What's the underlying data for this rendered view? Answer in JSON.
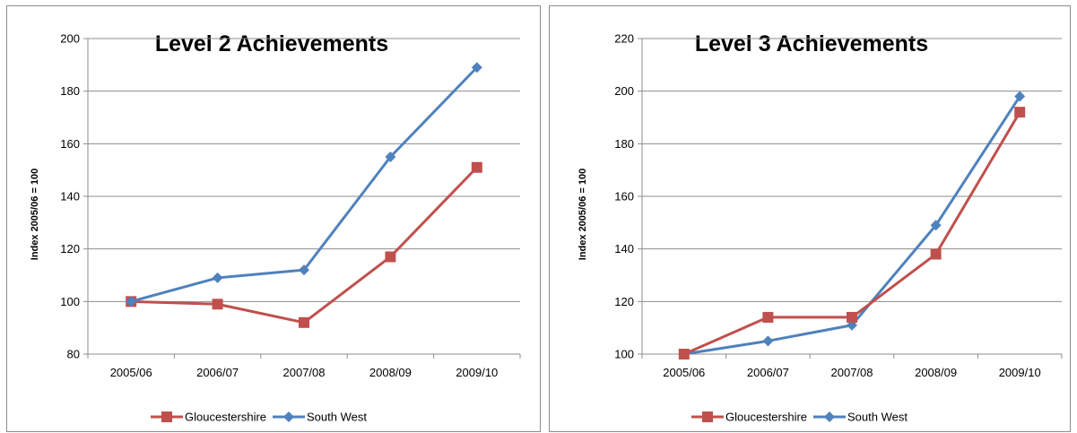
{
  "chart_data": [
    {
      "type": "line",
      "title": "Level 2 Achievements",
      "ylabel": "Index 2005/06 = 100",
      "xlabel": "",
      "categories": [
        "2005/06",
        "2006/07",
        "2007/08",
        "2008/09",
        "2009/10"
      ],
      "ylim": [
        80,
        200
      ],
      "yticks": [
        80,
        100,
        120,
        140,
        160,
        180,
        200
      ],
      "grid": true,
      "legend_position": "bottom",
      "series": [
        {
          "name": "Gloucestershire",
          "color": "#c0504d",
          "marker": "square",
          "values": [
            100,
            99,
            92,
            117,
            151
          ]
        },
        {
          "name": "South West",
          "color": "#4f81bd",
          "marker": "diamond",
          "values": [
            100,
            109,
            112,
            155,
            189
          ]
        }
      ]
    },
    {
      "type": "line",
      "title": "Level 3 Achievements",
      "ylabel": "Index 2005/06 = 100",
      "xlabel": "",
      "categories": [
        "2005/06",
        "2006/07",
        "2007/08",
        "2008/09",
        "2009/10"
      ],
      "ylim": [
        100,
        220
      ],
      "yticks": [
        100,
        120,
        140,
        160,
        180,
        200,
        220
      ],
      "grid": true,
      "legend_position": "bottom",
      "series": [
        {
          "name": "Gloucestershire",
          "color": "#c0504d",
          "marker": "square",
          "values": [
            100,
            114,
            114,
            138,
            192
          ]
        },
        {
          "name": "South West",
          "color": "#4f81bd",
          "marker": "diamond",
          "values": [
            100,
            105,
            111,
            149,
            198
          ]
        }
      ]
    }
  ]
}
